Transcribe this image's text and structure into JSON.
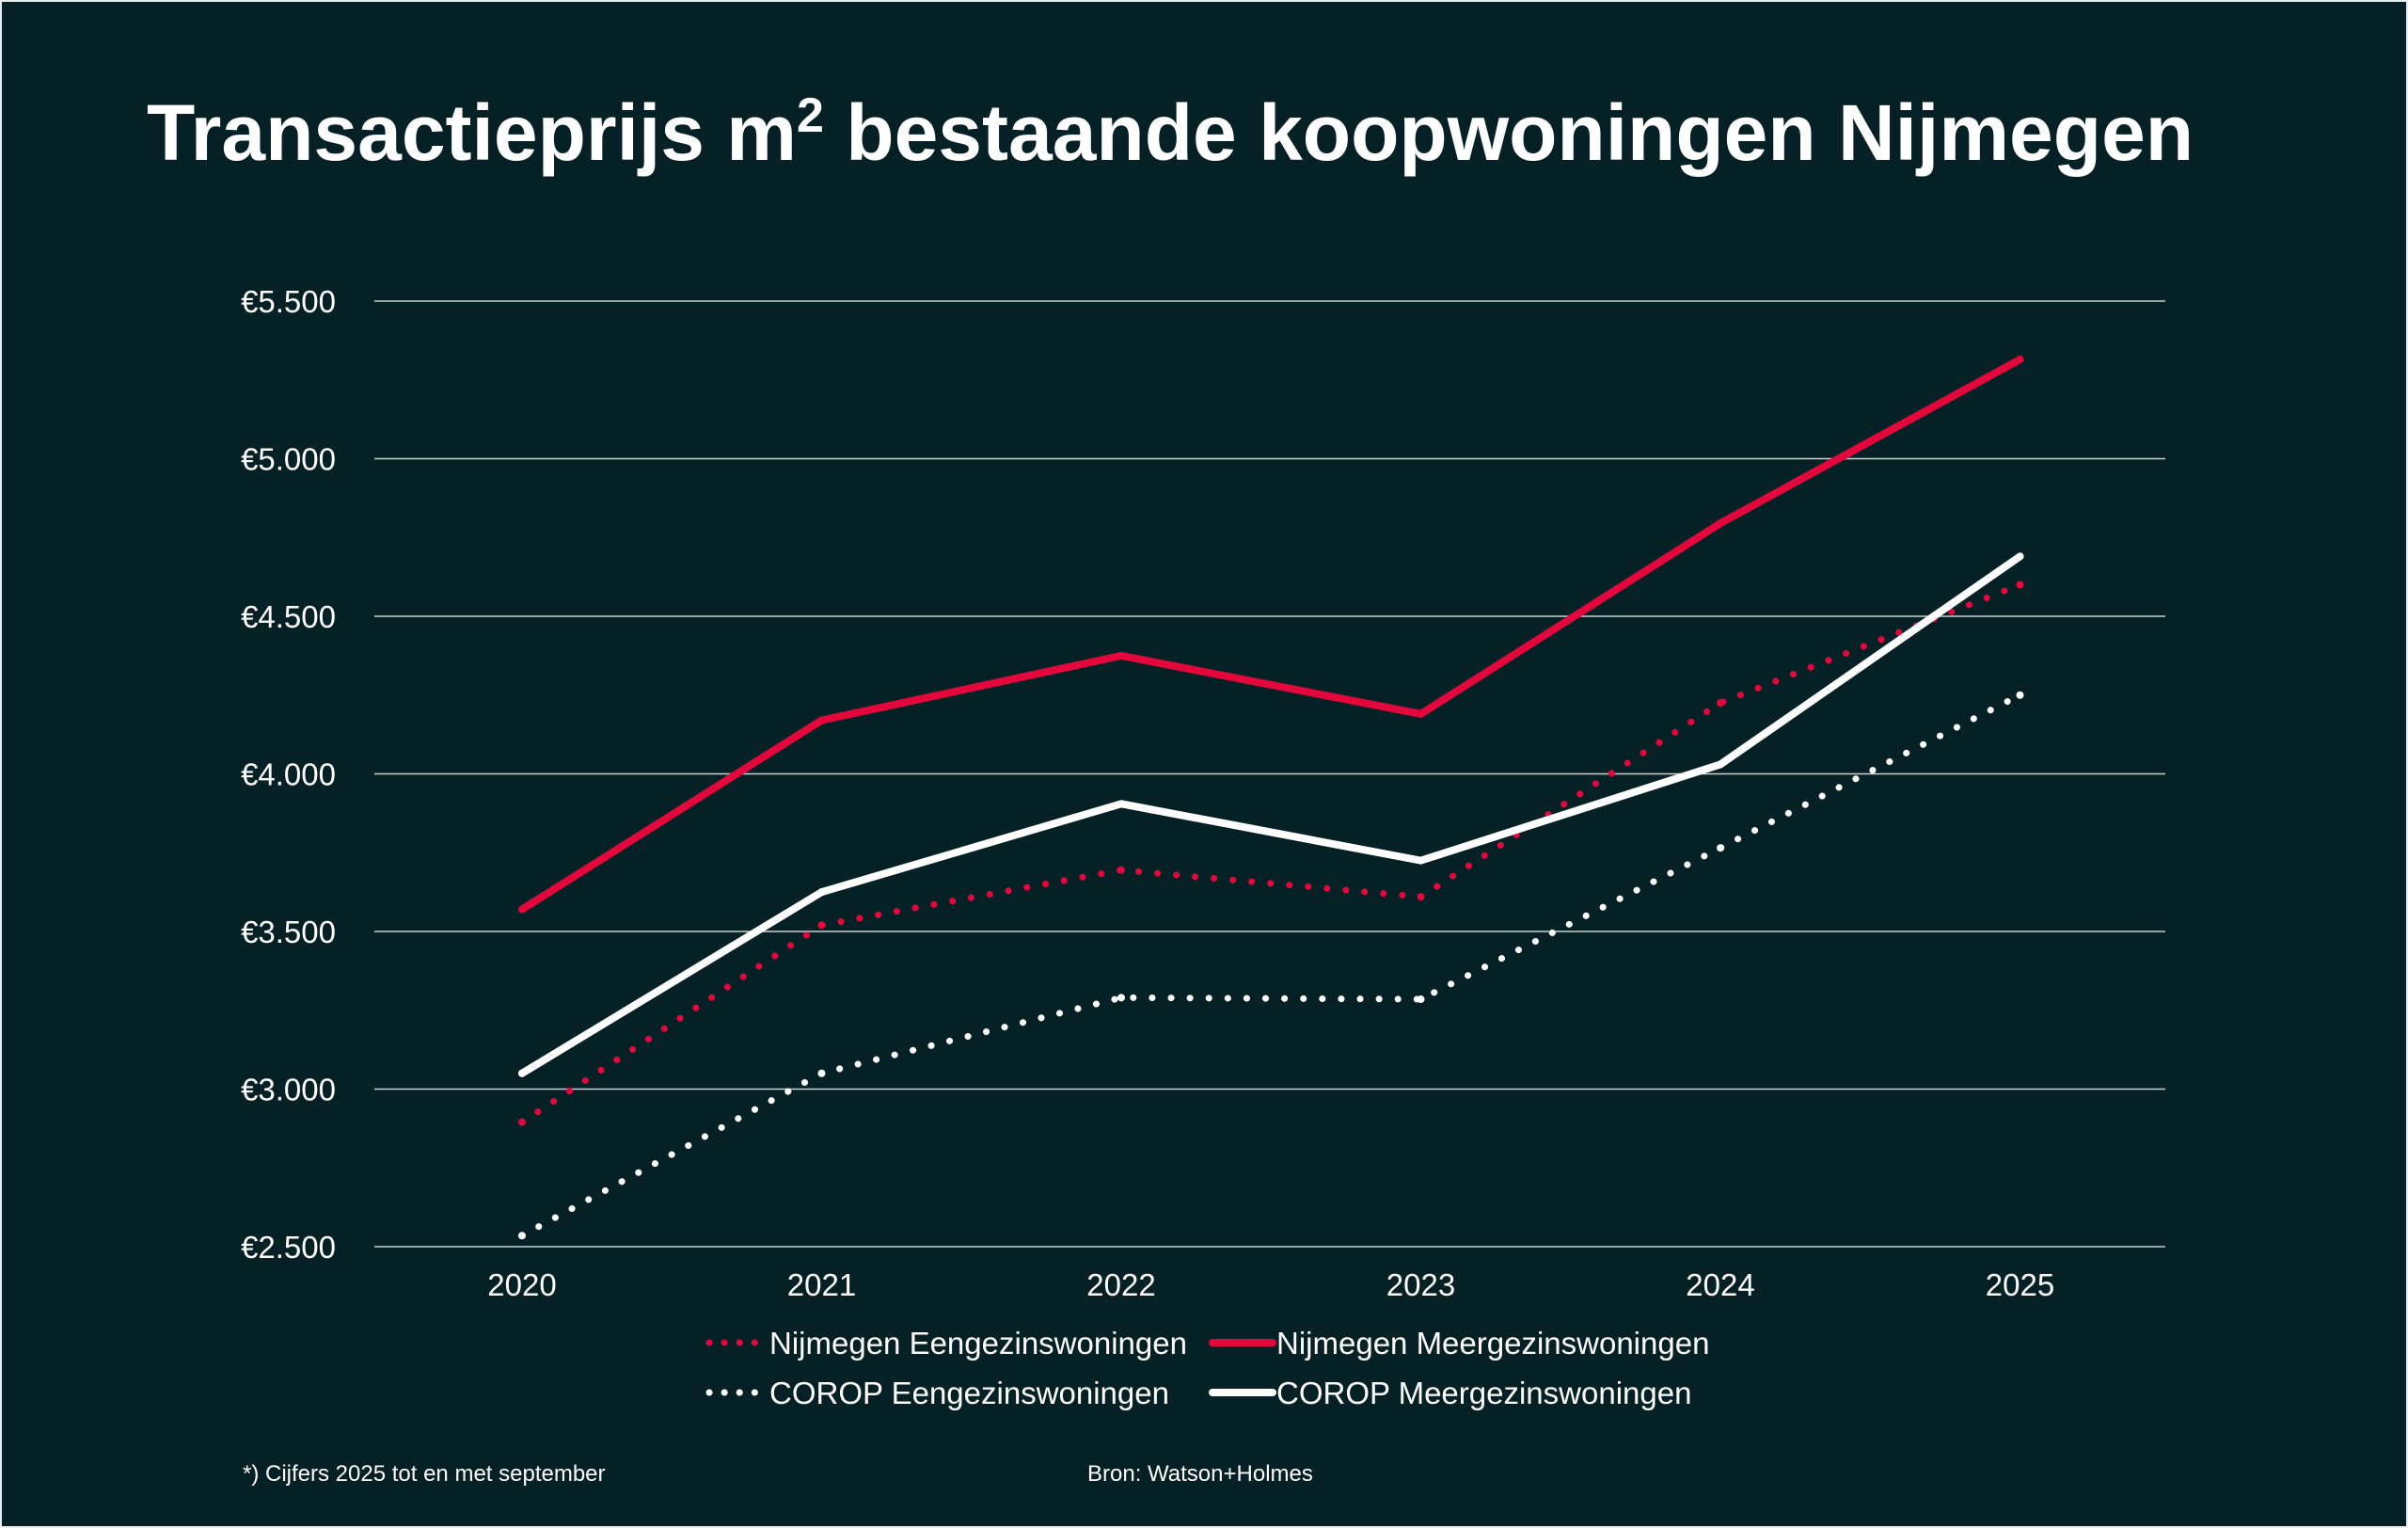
{
  "chart_data": {
    "type": "line",
    "title": "Transactieprijs m",
    "title_sup": "2",
    "title_rest": " bestaande koopwoningen Nijmegen",
    "categories": [
      "2020",
      "2021",
      "2022",
      "2023",
      "2024",
      "2025"
    ],
    "ylim": [
      2500,
      5500
    ],
    "yticks": [
      {
        "value": 2500,
        "label": "€2.500"
      },
      {
        "value": 3000,
        "label": "€3.000"
      },
      {
        "value": 3500,
        "label": "€3.500"
      },
      {
        "value": 4000,
        "label": "€4.000"
      },
      {
        "value": 4500,
        "label": "€4.500"
      },
      {
        "value": 5000,
        "label": "€5.000"
      },
      {
        "value": 5500,
        "label": "€5.500"
      }
    ],
    "grid": true,
    "legend_position": "bottom",
    "series": [
      {
        "name": "Nijmegen Eengezinswoningen",
        "color": "#e4073c",
        "style": "dotted",
        "values": [
          2895,
          3520,
          3695,
          3610,
          4225,
          4600
        ]
      },
      {
        "name": "Nijmegen Meergezinswoningen",
        "color": "#e4073c",
        "style": "solid",
        "values": [
          3570,
          4170,
          4375,
          4190,
          4795,
          5315
        ]
      },
      {
        "name": "COROP Eengezinswoningen",
        "color": "#ffffff",
        "style": "dotted",
        "values": [
          2535,
          3050,
          3290,
          3285,
          3765,
          4250
        ]
      },
      {
        "name": "COROP Meergezinswoningen",
        "color": "#ffffff",
        "style": "solid",
        "values": [
          3050,
          3625,
          3905,
          3725,
          4030,
          4690
        ]
      }
    ],
    "footnote": "*) Cijfers 2025 tot en met september",
    "source": "Bron: Watson+Holmes"
  }
}
